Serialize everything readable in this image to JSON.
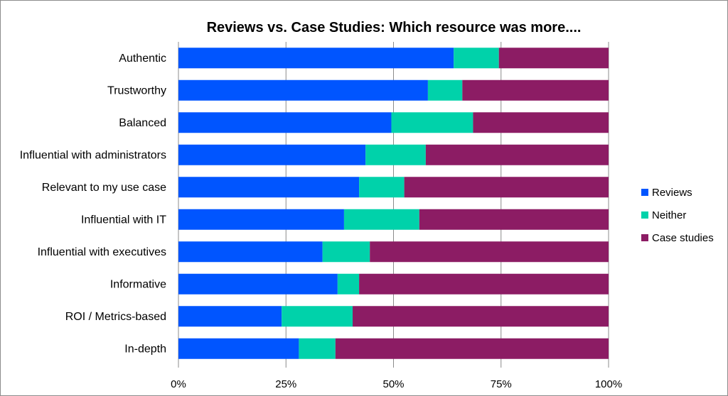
{
  "chart_data": {
    "type": "bar",
    "orientation": "horizontal",
    "stacked": "percent",
    "title": "Reviews vs. Case Studies: Which resource was more....",
    "categories": [
      "Authentic",
      "Trustworthy",
      "Balanced",
      "Influential with administrators",
      "Relevant to my use case",
      "Influential with IT",
      "Influential with executives",
      "Informative",
      "ROI / Metrics-based",
      "In-depth"
    ],
    "series": [
      {
        "name": "Reviews",
        "color": "#0055ff",
        "values": [
          64,
          58,
          49.5,
          43.5,
          42,
          38.5,
          33.5,
          37,
          24,
          28
        ]
      },
      {
        "name": "Neither",
        "color": "#00d2aa",
        "values": [
          10.5,
          8,
          19,
          14,
          10.5,
          17.5,
          11,
          5,
          16.5,
          8.5
        ]
      },
      {
        "name": "Case studies",
        "color": "#8c1c64",
        "values": [
          25.5,
          34,
          31.5,
          42.5,
          47.5,
          44,
          55.5,
          58,
          59.5,
          63.5
        ]
      }
    ],
    "x_ticks": [
      "0%",
      "25%",
      "50%",
      "75%",
      "100%"
    ],
    "xlim": [
      0,
      100
    ],
    "grid": true,
    "legend_position": "right"
  }
}
